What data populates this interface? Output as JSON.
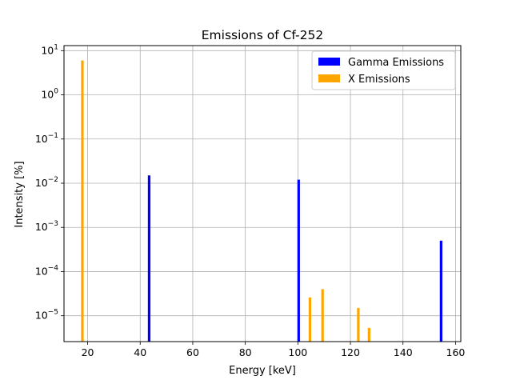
{
  "chart_data": {
    "type": "bar",
    "title": "Emissions of Cf-252",
    "xlabel": "Energy [keV]",
    "ylabel": "Intensity [%]",
    "yscale": "log",
    "xlim": [
      11,
      162
    ],
    "ylim": [
      2.6e-06,
      13
    ],
    "grid": true,
    "legend_position": "top-right",
    "x_ticks": [
      20,
      40,
      60,
      80,
      100,
      120,
      140,
      160
    ],
    "y_ticks": [
      {
        "value": 1e-05,
        "base": "10",
        "exp": "−5"
      },
      {
        "value": 0.0001,
        "base": "10",
        "exp": "−4"
      },
      {
        "value": 0.001,
        "base": "10",
        "exp": "−3"
      },
      {
        "value": 0.01,
        "base": "10",
        "exp": "−2"
      },
      {
        "value": 0.1,
        "base": "10",
        "exp": "−1"
      },
      {
        "value": 1,
        "base": "10",
        "exp": "0"
      },
      {
        "value": 10,
        "base": "10",
        "exp": "1"
      }
    ],
    "series": [
      {
        "name": "Gamma Emissions",
        "color": "#0000ff",
        "points": [
          {
            "x": 43.4,
            "y": 0.015
          },
          {
            "x": 100.3,
            "y": 0.012
          },
          {
            "x": 154.5,
            "y": 0.0005
          }
        ]
      },
      {
        "name": "X Emissions",
        "color": "#ffa500",
        "points": [
          {
            "x": 18.0,
            "y": 6.0
          },
          {
            "x": 104.6,
            "y": 2.6e-05
          },
          {
            "x": 109.4,
            "y": 4e-05
          },
          {
            "x": 123.0,
            "y": 1.5e-05
          },
          {
            "x": 127.1,
            "y": 5.3e-06
          }
        ]
      }
    ]
  }
}
